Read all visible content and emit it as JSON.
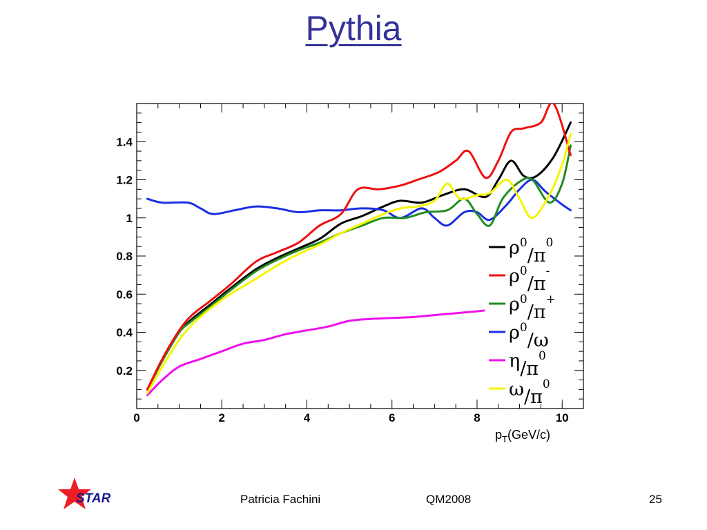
{
  "slide": {
    "title": "Pythia",
    "footer": {
      "author": "Patricia Fachini",
      "event": "QM2008",
      "page": "25"
    },
    "logo": {
      "text": "STAR",
      "star_color": "#ee1c25",
      "text_color": "#1a1a8c"
    }
  },
  "chart_data": {
    "type": "line",
    "title": "",
    "xlabel": "p_T(GeV/c)",
    "ylabel": "",
    "xlim": [
      0,
      10.5
    ],
    "ylim": [
      0,
      1.6
    ],
    "xticks": [
      0,
      2,
      4,
      6,
      8,
      10
    ],
    "yticks": [
      0.2,
      0.4,
      0.6,
      0.8,
      1,
      1.2,
      1.4
    ],
    "grid": false,
    "legend_position": "bottom-right",
    "series": [
      {
        "name": "ρ0/π0",
        "base": "ρ",
        "sup": "0",
        "den": "π",
        "dsup": "0",
        "color": "#000000",
        "points": [
          [
            0.25,
            0.1
          ],
          [
            0.6,
            0.25
          ],
          [
            1.0,
            0.4
          ],
          [
            1.3,
            0.47
          ],
          [
            1.7,
            0.54
          ],
          [
            2.2,
            0.63
          ],
          [
            2.8,
            0.73
          ],
          [
            3.3,
            0.79
          ],
          [
            3.8,
            0.84
          ],
          [
            4.3,
            0.89
          ],
          [
            4.8,
            0.97
          ],
          [
            5.3,
            1.01
          ],
          [
            5.8,
            1.06
          ],
          [
            6.2,
            1.09
          ],
          [
            6.7,
            1.08
          ],
          [
            7.2,
            1.12
          ],
          [
            7.7,
            1.15
          ],
          [
            8.2,
            1.11
          ],
          [
            8.5,
            1.2
          ],
          [
            8.8,
            1.3
          ],
          [
            9.1,
            1.22
          ],
          [
            9.4,
            1.22
          ],
          [
            9.8,
            1.32
          ],
          [
            10.2,
            1.5
          ]
        ]
      },
      {
        "name": "ρ0/π-",
        "base": "ρ",
        "sup": "0",
        "den": "π",
        "dsup": "-",
        "color": "#ee1111",
        "points": [
          [
            0.25,
            0.1
          ],
          [
            0.6,
            0.26
          ],
          [
            1.0,
            0.41
          ],
          [
            1.3,
            0.49
          ],
          [
            1.7,
            0.56
          ],
          [
            2.2,
            0.65
          ],
          [
            2.8,
            0.77
          ],
          [
            3.3,
            0.82
          ],
          [
            3.8,
            0.87
          ],
          [
            4.3,
            0.96
          ],
          [
            4.8,
            1.02
          ],
          [
            5.2,
            1.15
          ],
          [
            5.7,
            1.15
          ],
          [
            6.2,
            1.17
          ],
          [
            6.6,
            1.2
          ],
          [
            7.1,
            1.24
          ],
          [
            7.5,
            1.3
          ],
          [
            7.8,
            1.35
          ],
          [
            8.2,
            1.21
          ],
          [
            8.5,
            1.3
          ],
          [
            8.8,
            1.45
          ],
          [
            9.1,
            1.47
          ],
          [
            9.5,
            1.5
          ],
          [
            9.8,
            1.6
          ],
          [
            10.2,
            1.33
          ]
        ]
      },
      {
        "name": "ρ0/π+",
        "base": "ρ",
        "sup": "0",
        "den": "π",
        "dsup": "+",
        "color": "#228b22",
        "points": [
          [
            0.25,
            0.1
          ],
          [
            0.6,
            0.25
          ],
          [
            1.0,
            0.4
          ],
          [
            1.3,
            0.46
          ],
          [
            1.7,
            0.53
          ],
          [
            2.2,
            0.62
          ],
          [
            2.8,
            0.72
          ],
          [
            3.3,
            0.78
          ],
          [
            3.8,
            0.83
          ],
          [
            4.3,
            0.87
          ],
          [
            4.8,
            0.92
          ],
          [
            5.3,
            0.96
          ],
          [
            5.8,
            1.0
          ],
          [
            6.3,
            1.0
          ],
          [
            6.8,
            1.03
          ],
          [
            7.3,
            1.04
          ],
          [
            7.7,
            1.1
          ],
          [
            8.0,
            1.02
          ],
          [
            8.3,
            0.96
          ],
          [
            8.6,
            1.1
          ],
          [
            9.0,
            1.19
          ],
          [
            9.3,
            1.2
          ],
          [
            9.7,
            1.08
          ],
          [
            10.0,
            1.18
          ],
          [
            10.2,
            1.38
          ]
        ]
      },
      {
        "name": "ρ0/ω",
        "base": "ρ",
        "sup": "0",
        "den": "ω",
        "dsup": "",
        "color": "#1a2ee6",
        "points": [
          [
            0.25,
            1.1
          ],
          [
            0.6,
            1.08
          ],
          [
            1.2,
            1.08
          ],
          [
            1.5,
            1.05
          ],
          [
            1.8,
            1.02
          ],
          [
            2.3,
            1.04
          ],
          [
            2.8,
            1.06
          ],
          [
            3.3,
            1.05
          ],
          [
            3.8,
            1.03
          ],
          [
            4.3,
            1.04
          ],
          [
            4.8,
            1.04
          ],
          [
            5.3,
            1.05
          ],
          [
            5.8,
            1.04
          ],
          [
            6.2,
            1.0
          ],
          [
            6.7,
            1.05
          ],
          [
            7.0,
            1.0
          ],
          [
            7.3,
            0.96
          ],
          [
            7.7,
            1.03
          ],
          [
            8.0,
            1.03
          ],
          [
            8.3,
            0.99
          ],
          [
            8.7,
            1.07
          ],
          [
            9.0,
            1.15
          ],
          [
            9.3,
            1.2
          ],
          [
            9.6,
            1.14
          ],
          [
            10.0,
            1.07
          ],
          [
            10.2,
            1.04
          ]
        ]
      },
      {
        "name": "η/π0",
        "base": "η",
        "sup": "",
        "den": "π",
        "dsup": "0",
        "color": "#ee11ee",
        "points": [
          [
            0.25,
            0.07
          ],
          [
            0.6,
            0.15
          ],
          [
            1.0,
            0.22
          ],
          [
            1.5,
            0.26
          ],
          [
            2.0,
            0.3
          ],
          [
            2.5,
            0.34
          ],
          [
            3.0,
            0.36
          ],
          [
            3.5,
            0.39
          ],
          [
            4.0,
            0.41
          ],
          [
            4.5,
            0.43
          ],
          [
            5.0,
            0.46
          ],
          [
            5.5,
            0.47
          ],
          [
            6.0,
            0.475
          ],
          [
            6.5,
            0.48
          ],
          [
            7.0,
            0.49
          ],
          [
            7.5,
            0.5
          ],
          [
            8.0,
            0.51
          ],
          [
            8.2,
            0.515
          ]
        ]
      },
      {
        "name": "ω/π0",
        "base": "ω",
        "sup": "",
        "den": "π",
        "dsup": "0",
        "color": "#f5f500",
        "points": [
          [
            0.25,
            0.08
          ],
          [
            0.6,
            0.22
          ],
          [
            1.0,
            0.36
          ],
          [
            1.3,
            0.44
          ],
          [
            1.7,
            0.52
          ],
          [
            2.2,
            0.6
          ],
          [
            2.8,
            0.68
          ],
          [
            3.3,
            0.75
          ],
          [
            3.8,
            0.81
          ],
          [
            4.3,
            0.86
          ],
          [
            4.8,
            0.92
          ],
          [
            5.3,
            0.97
          ],
          [
            5.8,
            1.02
          ],
          [
            6.2,
            1.05
          ],
          [
            6.6,
            1.06
          ],
          [
            7.0,
            1.09
          ],
          [
            7.3,
            1.18
          ],
          [
            7.6,
            1.1
          ],
          [
            8.0,
            1.12
          ],
          [
            8.3,
            1.13
          ],
          [
            8.7,
            1.2
          ],
          [
            9.0,
            1.1
          ],
          [
            9.3,
            1.0
          ],
          [
            9.7,
            1.12
          ],
          [
            10.0,
            1.28
          ],
          [
            10.2,
            1.44
          ]
        ]
      }
    ]
  }
}
